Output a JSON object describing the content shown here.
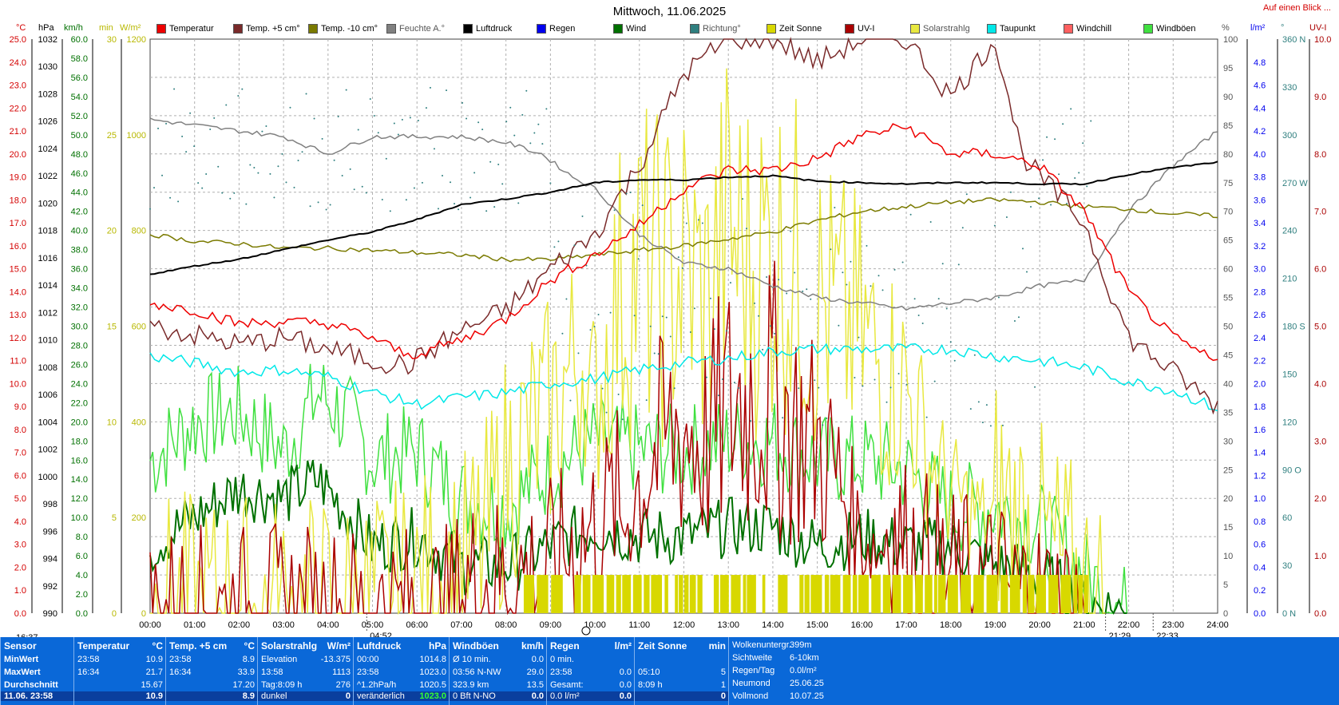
{
  "title": "Mittwoch, 11.06.2025",
  "link_text": "Auf einen Blick ...",
  "legend": [
    {
      "label": "Temperatur",
      "color": "#ee0000"
    },
    {
      "label": "Temp. +5 cm°",
      "color": "#7a2a2a"
    },
    {
      "label": "Temp. -10 cm°",
      "color": "#7a7a00"
    },
    {
      "label": "Feuchte A.°",
      "color": "#808080"
    },
    {
      "label": "Luftdruck",
      "color": "#000000"
    },
    {
      "label": "Regen",
      "color": "#0000ee"
    },
    {
      "label": "Wind",
      "color": "#007000"
    },
    {
      "label": "Richtung°",
      "color": "#2f7f7f"
    },
    {
      "label": "Zeit Sonne",
      "color": "#d8d800"
    },
    {
      "label": "UV-I",
      "color": "#aa0000"
    },
    {
      "label": "Solarstrahlg",
      "color": "#e8e840"
    },
    {
      "label": "Taupunkt",
      "color": "#00e8e8"
    },
    {
      "label": "Windchill",
      "color": "#ff6060"
    },
    {
      "label": "Windböen",
      "color": "#40e040"
    }
  ],
  "axis_headers": {
    "temp": "°C",
    "hpa": "hPa",
    "kmh": "km/h",
    "min": "min",
    "wm2": "W/m²",
    "pct": "%",
    "lm2": "l/m²",
    "deg": "°",
    "uvi": "UV-I"
  },
  "chart_data": {
    "type": "line",
    "x_ticks": [
      "00:00",
      "01:00",
      "02:00",
      "03:00",
      "04:00",
      "05:00",
      "06:00",
      "07:00",
      "08:00",
      "09:00",
      "10:00",
      "11:00",
      "12:00",
      "13:00",
      "14:00",
      "15:00",
      "16:00",
      "17:00",
      "18:00",
      "19:00",
      "20:00",
      "21:00",
      "22:00",
      "23:00",
      "24:00"
    ],
    "y_axes": {
      "temp": {
        "range": [
          0,
          25
        ],
        "ticks": [
          "25.0",
          "24.0",
          "23.0",
          "22.0",
          "21.0",
          "20.0",
          "19.0",
          "18.0",
          "17.0",
          "16.0",
          "15.0",
          "14.0",
          "13.0",
          "12.0",
          "11.0",
          "10.0",
          "9.0",
          "8.0",
          "7.0",
          "6.0",
          "5.0",
          "4.0",
          "3.0",
          "2.0",
          "1.0",
          "0.0"
        ],
        "color": "#d40000"
      },
      "hpa": {
        "range": [
          990,
          1032
        ],
        "ticks": [
          "1032",
          "1030",
          "1028",
          "1026",
          "1024",
          "1022",
          "1020",
          "1018",
          "1016",
          "1014",
          "1012",
          "1010",
          "1008",
          "1006",
          "1004",
          "1002",
          "1000",
          "998",
          "996",
          "994",
          "992",
          "990"
        ]
      },
      "kmh": {
        "range": [
          0,
          60
        ],
        "ticks": [
          "60.0",
          "58.0",
          "56.0",
          "54.0",
          "52.0",
          "50.0",
          "48.0",
          "46.0",
          "44.0",
          "42.0",
          "40.0",
          "38.0",
          "36.0",
          "34.0",
          "32.0",
          "30.0",
          "28.0",
          "26.0",
          "24.0",
          "22.0",
          "20.0",
          "18.0",
          "16.0",
          "14.0",
          "12.0",
          "10.0",
          "8.0",
          "6.0",
          "4.0",
          "2.0",
          "0.0"
        ],
        "color": "#007000"
      },
      "min": {
        "range": [
          0,
          30
        ],
        "ticks": [
          "30",
          "25",
          "20",
          "15",
          "10",
          "5",
          "0"
        ],
        "color": "#b8b800"
      },
      "wm2": {
        "range": [
          0,
          1200
        ],
        "ticks": [
          "1200",
          "1000",
          "800",
          "600",
          "400",
          "200",
          "0"
        ],
        "color": "#b8b800"
      },
      "pct": {
        "range": [
          0,
          100
        ],
        "ticks": [
          "100",
          "95",
          "90",
          "85",
          "80",
          "75",
          "70",
          "65",
          "60",
          "55",
          "50",
          "45",
          "40",
          "35",
          "30",
          "25",
          "20",
          "15",
          "10",
          "5",
          "0"
        ]
      },
      "lm2": {
        "range": [
          0,
          5
        ],
        "ticks": [
          "4.8",
          "4.6",
          "4.4",
          "4.2",
          "4.0",
          "3.8",
          "3.6",
          "3.4",
          "3.2",
          "3.0",
          "2.8",
          "2.6",
          "2.4",
          "2.2",
          "2.0",
          "1.8",
          "1.6",
          "1.4",
          "1.2",
          "1.0",
          "0.8",
          "0.6",
          "0.4",
          "0.2",
          "0.0"
        ],
        "color": "#0000ee"
      },
      "deg": {
        "range": [
          0,
          360
        ],
        "ticks": [
          "360 N",
          "330",
          "300",
          "270 W",
          "240",
          "210",
          "180 S",
          "150",
          "120",
          "90 O",
          "60",
          "30",
          "0 N"
        ],
        "color": "#2f7f7f"
      },
      "uvi": {
        "range": [
          0,
          10
        ],
        "ticks": [
          "10.0",
          "9.0",
          "8.0",
          "7.0",
          "6.0",
          "5.0",
          "4.0",
          "3.0",
          "2.0",
          "1.0",
          "0.0"
        ],
        "color": "#aa0000"
      }
    },
    "series": [
      {
        "name": "Temperatur",
        "axis": "temp",
        "hours": [
          0,
          1,
          2,
          3,
          4,
          5,
          5.8,
          7,
          8,
          9,
          10,
          11,
          12,
          13,
          14,
          15,
          16,
          17,
          18,
          19,
          20,
          21,
          22,
          23,
          24
        ],
        "values": [
          13.5,
          13.2,
          12.6,
          12.7,
          12.6,
          12.0,
          11.2,
          11.9,
          12.8,
          14.5,
          15.6,
          16.9,
          18.5,
          19.3,
          19.3,
          19.8,
          20.8,
          21.2,
          20.0,
          20.0,
          19.5,
          17.5,
          14.0,
          12.0,
          10.9
        ]
      },
      {
        "name": "Temp. +5 cm°",
        "axis": "temp",
        "hours": [
          0,
          1,
          2,
          3,
          4,
          5,
          5.8,
          7,
          8,
          9,
          10,
          11,
          12,
          13,
          14,
          15,
          16,
          17,
          18,
          19,
          19.6,
          20,
          21,
          22,
          23,
          24
        ],
        "values": [
          12.5,
          12.1,
          11.7,
          12.0,
          11.5,
          11.0,
          10.8,
          12.3,
          13.2,
          15.0,
          16.5,
          19.5,
          23.5,
          25.0,
          25.0,
          24.0,
          25.0,
          25.0,
          22.5,
          25.0,
          20.0,
          19.0,
          17.0,
          12.0,
          10.5,
          9.0
        ]
      },
      {
        "name": "Temp. -10 cm°",
        "axis": "temp",
        "hours": [
          0,
          1,
          2,
          3,
          4,
          5,
          6,
          7,
          8,
          9,
          10,
          11,
          12,
          13,
          14,
          15,
          16,
          17,
          18,
          19,
          20,
          21,
          22,
          23,
          24
        ],
        "values": [
          16.5,
          16.2,
          16.1,
          15.9,
          15.9,
          15.8,
          15.7,
          15.6,
          15.4,
          15.4,
          15.6,
          15.8,
          16.0,
          16.3,
          16.6,
          17.1,
          17.5,
          17.7,
          17.9,
          18.0,
          17.9,
          17.7,
          17.6,
          17.4,
          17.3
        ]
      },
      {
        "name": "Feuchte A.°",
        "axis": "pct",
        "hours": [
          0,
          1,
          2,
          3,
          4,
          5,
          6,
          7,
          8,
          8.8,
          9.5,
          10,
          10.5,
          11,
          12,
          13,
          14,
          15,
          16,
          17,
          18,
          19,
          20,
          21,
          22,
          23,
          24
        ],
        "values": [
          86,
          85,
          84,
          83,
          80,
          83,
          83,
          83,
          82,
          80,
          76,
          74,
          70,
          66,
          61,
          60,
          57,
          55,
          54,
          53,
          54,
          55,
          57,
          58,
          70,
          78,
          84
        ]
      },
      {
        "name": "Luftdruck",
        "axis": "hpa",
        "hours": [
          0,
          1,
          2,
          3,
          4,
          5,
          6,
          7,
          8,
          9,
          10,
          11,
          12,
          13,
          14,
          15,
          16,
          17,
          18,
          19,
          20,
          21,
          22,
          23,
          24
        ],
        "values": [
          1014.8,
          1015.4,
          1015.9,
          1016.6,
          1017.3,
          1017.9,
          1018.8,
          1019.9,
          1020.3,
          1020.8,
          1021.5,
          1021.7,
          1021.7,
          1021.9,
          1022.0,
          1021.6,
          1021.5,
          1021.4,
          1021.5,
          1021.5,
          1021.4,
          1021.4,
          1022.1,
          1022.6,
          1023.0
        ]
      },
      {
        "name": "Taupunkt",
        "axis": "temp",
        "hours": [
          0,
          1,
          2,
          3,
          4,
          5,
          6,
          7,
          8,
          9,
          10,
          11,
          12,
          13,
          14,
          15,
          16,
          17,
          18,
          19,
          20,
          21,
          22,
          23,
          24
        ],
        "values": [
          11.2,
          10.9,
          10.5,
          10.6,
          10.3,
          9.6,
          9.1,
          9.4,
          9.6,
          10.0,
          10.2,
          10.6,
          10.9,
          11.1,
          11.4,
          11.5,
          11.5,
          11.5,
          11.5,
          11.2,
          11.0,
          10.7,
          10.1,
          9.7,
          8.9
        ]
      },
      {
        "name": "Wind",
        "axis": "kmh",
        "hours": [
          0,
          1,
          2,
          3,
          3.8,
          4.5,
          5,
          6,
          7,
          8,
          9,
          10,
          11,
          12,
          13,
          14,
          15,
          16,
          17,
          18,
          19,
          20,
          21,
          22
        ],
        "values": [
          7,
          10,
          13,
          12,
          14,
          10,
          7,
          8,
          5,
          5,
          7,
          9,
          8,
          8,
          9,
          9,
          7,
          8,
          7,
          7,
          5,
          4,
          1,
          0
        ]
      },
      {
        "name": "Windböen",
        "axis": "kmh",
        "hours": [
          0,
          1,
          2,
          3,
          3.8,
          4.5,
          5,
          6,
          7,
          8,
          9,
          10,
          11,
          12,
          13,
          14,
          15,
          16,
          17,
          18,
          19,
          20,
          21,
          22
        ],
        "values": [
          16,
          20,
          21,
          17,
          23,
          20,
          16,
          17,
          12,
          11,
          15,
          18,
          17,
          17,
          18,
          18,
          16,
          16,
          15,
          11,
          11,
          9,
          4,
          0
        ]
      },
      {
        "name": "Solarstrahlg",
        "axis": "wm2",
        "hours": [
          0,
          4.3,
          5,
          6,
          7,
          7.6,
          8,
          9,
          10,
          10.5,
          11,
          11.5,
          12,
          12.5,
          13,
          13.5,
          14,
          14.5,
          15,
          15.5,
          16,
          16.5,
          17,
          17.5,
          18,
          19,
          20,
          21,
          21.5
        ],
        "values": [
          0,
          0,
          5,
          40,
          80,
          160,
          300,
          420,
          600,
          900,
          1000,
          950,
          1000,
          900,
          1100,
          1000,
          1050,
          1000,
          900,
          850,
          800,
          700,
          650,
          450,
          350,
          250,
          150,
          40,
          0
        ]
      },
      {
        "name": "UV-I",
        "axis": "uvi",
        "hours": [
          0,
          6.8,
          7,
          8,
          9,
          10,
          10.5,
          11,
          11.5,
          12,
          12.5,
          13,
          13.5,
          14,
          14.5,
          15,
          15.5,
          16,
          17,
          18,
          19,
          20,
          21
        ],
        "values": [
          0,
          0,
          0.5,
          0.6,
          0.8,
          1.5,
          2,
          3.5,
          4.5,
          5.0,
          4.5,
          5.5,
          5.8,
          5.7,
          5.0,
          4.5,
          3.5,
          2.0,
          1.2,
          0.6,
          0.5,
          0.2,
          0
        ]
      },
      {
        "name": "Zeit Sonne",
        "axis": "min",
        "hours": [
          8.4,
          10,
          11,
          12,
          13,
          14,
          15,
          16,
          17,
          18,
          19,
          20,
          21.1
        ],
        "values": [
          2,
          2,
          2,
          2,
          2,
          2,
          2,
          2,
          2,
          2,
          2,
          2,
          2
        ]
      }
    ],
    "time_markers": [
      {
        "label": "04:52",
        "hour": 4.87
      },
      {
        "label": "21:29",
        "hour": 21.48
      },
      {
        "label": "22:33",
        "hour": 22.55
      }
    ],
    "corner_time": "16:37"
  },
  "footer": {
    "date_label": "11.06. 23:58",
    "sensor_col": {
      "header": "Sensor",
      "rows": [
        "MinWert",
        "MaxWert",
        "Durchschnitt"
      ]
    },
    "temp_col": {
      "header": "Temperatur",
      "unit": "°C",
      "rows": [
        [
          "23:58",
          "10.9"
        ],
        [
          "16:34",
          "21.7"
        ],
        [
          "",
          "15.67"
        ]
      ],
      "last": "10.9"
    },
    "temp5_col": {
      "header": "Temp. +5 cm",
      "unit": "°C",
      "rows": [
        [
          "23:58",
          "8.9"
        ],
        [
          "16:34",
          "33.9"
        ],
        [
          "",
          "17.20"
        ]
      ],
      "last": "8.9"
    },
    "solar_col": {
      "header": "Solarstrahlg",
      "unit": "W/m²",
      "rows": [
        [
          "Elevation",
          "-13.375"
        ],
        [
          "13:58",
          "1113"
        ],
        [
          "Tag:8:09 h",
          "276"
        ]
      ],
      "last_label": "dunkel",
      "last": "0"
    },
    "press_col": {
      "header": "Luftdruck",
      "unit": "hPa",
      "rows": [
        [
          "00:00",
          "1014.8"
        ],
        [
          "23:58",
          "1023.0"
        ],
        [
          "^1.2hPa/h",
          "1020.5"
        ]
      ],
      "last_label": "veränderlich",
      "last": "1023.0"
    },
    "wind_col": {
      "header": "Windböen",
      "unit": "km/h",
      "rows": [
        [
          "Ø 10 min.",
          "0.0"
        ],
        [
          "03:56   N-NW",
          "29.0"
        ],
        [
          "323.9 km",
          "13.5"
        ]
      ],
      "last_label": "0 Bft N-NO",
      "last": "0.0"
    },
    "rain_col": {
      "header": "Regen",
      "unit": "l/m²",
      "rows": [
        [
          "0 min.",
          ""
        ],
        [
          "23:58",
          "0.0"
        ],
        [
          "Gesamt:",
          "0.0"
        ]
      ],
      "last_label": "0.0 l/m²",
      "last": "0.0"
    },
    "sun_col": {
      "header": "Zeit Sonne",
      "unit": "min",
      "rows": [
        [
          "",
          ""
        ],
        [
          "05:10",
          "5"
        ],
        [
          "8:09 h",
          "1"
        ]
      ],
      "last": "0"
    },
    "info_col": {
      "rows": [
        [
          "Wolkenuntergr.",
          "399m"
        ],
        [
          "Sichtweite",
          "6-10km"
        ],
        [
          "Regen/Tag",
          "0.0l/m²"
        ],
        [
          "Neumond",
          "25.06.25"
        ],
        [
          "Vollmond",
          "10.07.25"
        ]
      ]
    }
  }
}
